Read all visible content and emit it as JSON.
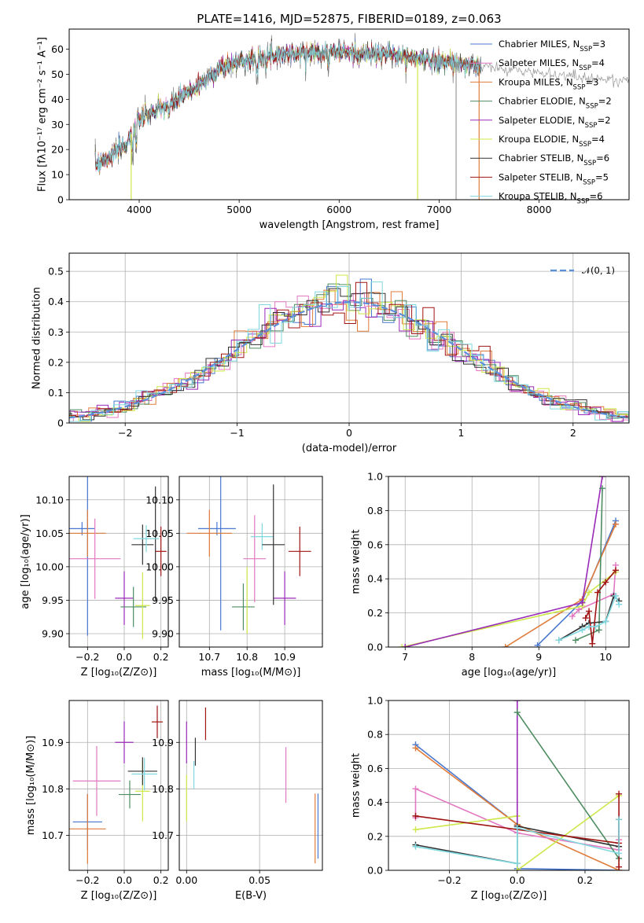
{
  "chart_data": [
    {
      "id": "spectrum",
      "type": "line",
      "title": "PLATE=1416, MJD=52875, FIBERID=0189, z=0.063",
      "xlabel": "wavelength [Angstrom, rest frame]",
      "ylabel": "Flux [fλ10⁻¹⁷ erg cm⁻² s⁻¹ A⁻¹]",
      "xlim": [
        3300,
        8900
      ],
      "ylim": [
        0,
        68
      ],
      "x_ticks": [
        4000,
        5000,
        6000,
        7000,
        8000
      ],
      "y_ticks": [
        0,
        10,
        20,
        30,
        40,
        50,
        60
      ],
      "grid": false,
      "legend_position": "top-right",
      "continuum_trend": {
        "x": [
          3550,
          3700,
          3850,
          4000,
          4200,
          4400,
          4600,
          4800,
          5000,
          5200,
          5400,
          5600,
          5800,
          6000,
          6200,
          6500,
          6800,
          7100,
          7400
        ],
        "y": [
          14,
          17,
          21,
          32,
          36,
          40,
          46,
          52,
          55,
          57,
          58,
          58,
          59,
          59,
          58,
          58,
          56,
          55,
          53
        ]
      },
      "series": [
        {
          "name": "Chabrier MILES, N_SSP=3",
          "color": "#4878d0"
        },
        {
          "name": "Salpeter MILES, N_SSP=4",
          "color": "#e377c2"
        },
        {
          "name": "Kroupa MILES, N_SSP=3",
          "color": "#e07b39"
        },
        {
          "name": "Chabrier ELODIE, N_SSP=2",
          "color": "#4e8c62"
        },
        {
          "name": "Salpeter ELODIE, N_SSP=2",
          "color": "#9a2ab8"
        },
        {
          "name": "Kroupa ELODIE, N_SSP=4",
          "color": "#cde84a"
        },
        {
          "name": "Chabrier STELIB, N_SSP=6",
          "color": "#333333"
        },
        {
          "name": "Salpeter STELIB, N_SSP=5",
          "color": "#a11414"
        },
        {
          "name": "Kroupa STELIB, N_SSP=6",
          "color": "#7fd8e0"
        }
      ]
    },
    {
      "id": "residuals",
      "type": "histogram",
      "xlabel": "(data-model)/error",
      "ylabel": "Normed distribution",
      "xlim": [
        -2.5,
        2.5
      ],
      "ylim": [
        0,
        0.56
      ],
      "x_ticks": [
        -2,
        -1,
        0,
        1,
        2
      ],
      "y_ticks": [
        0.0,
        0.1,
        0.2,
        0.3,
        0.4,
        0.5
      ],
      "grid": true,
      "legend_position": "top-right",
      "reference_curve": {
        "name": "𝒩(0, 1)",
        "mu": 0,
        "sigma": 1,
        "color": "#5b8fd9"
      }
    },
    {
      "id": "age-vs-Z",
      "type": "errorbar",
      "xlabel": "Z [log₁₀(Z/Z⊙)]",
      "ylabel": "age  [log₁₀(age/yr)]",
      "xlim": [
        -0.3,
        0.24
      ],
      "ylim": [
        9.88,
        10.135
      ],
      "x_ticks": [
        -0.2,
        0.0,
        0.2
      ],
      "y_ticks": [
        9.9,
        9.95,
        10.0,
        10.05,
        10.1
      ],
      "x_tick_labels": [
        "−0.2",
        "0.0",
        "0.2"
      ],
      "y_tick_labels": [
        "9.90",
        "9.95",
        "10.00",
        "10.05",
        "10.10"
      ],
      "grid": true,
      "points": [
        {
          "x": -0.23,
          "y": 10.057,
          "xerr": 0.07,
          "yerr": 0.01,
          "color": "#4878d0"
        },
        {
          "x": -0.2,
          "y": 10.057,
          "xerr": 0.0,
          "yerr": 0.16,
          "color": "#4878d0"
        },
        {
          "x": -0.2,
          "y": 10.05,
          "xerr": 0.1,
          "yerr": 0.035,
          "color": "#e07b39"
        },
        {
          "x": -0.16,
          "y": 10.012,
          "xerr": 0.14,
          "yerr": 0.06,
          "color": "#e377c2"
        },
        {
          "x": 0.0,
          "y": 9.953,
          "xerr": 0.05,
          "yerr": 0.04,
          "color": "#9a2ab8"
        },
        {
          "x": 0.05,
          "y": 9.94,
          "xerr": 0.07,
          "yerr": 0.03,
          "color": "#4e8c62"
        },
        {
          "x": 0.1,
          "y": 9.942,
          "xerr": 0.04,
          "yerr": 0.05,
          "color": "#cde84a"
        },
        {
          "x": 0.1,
          "y": 10.033,
          "xerr": 0.06,
          "yerr": 0.03,
          "color": "#333333"
        },
        {
          "x": 0.17,
          "y": 10.035,
          "xerr": 0.0,
          "yerr": 0.085,
          "color": "#333333"
        },
        {
          "x": 0.12,
          "y": 10.042,
          "xerr": 0.07,
          "yerr": 0.02,
          "color": "#7fd8e0"
        },
        {
          "x": 0.2,
          "y": 10.023,
          "xerr": 0.03,
          "yerr": 0.037,
          "color": "#a11414"
        }
      ]
    },
    {
      "id": "age-vs-mass",
      "type": "errorbar",
      "xlabel": "mass [log₁₀(M/M⊙)]",
      "ylabel": "",
      "xlim": [
        10.62,
        11.0
      ],
      "ylim": [
        9.88,
        10.135
      ],
      "x_ticks": [
        10.7,
        10.8,
        10.9
      ],
      "y_ticks": [
        9.9,
        9.95,
        10.0,
        10.05,
        10.1
      ],
      "x_tick_labels": [
        "10.7",
        "10.8",
        "10.9"
      ],
      "y_tick_labels": [
        "9.90",
        "9.95",
        "10.00",
        "10.05",
        "10.10"
      ],
      "grid": true,
      "points": [
        {
          "x": 10.72,
          "y": 10.057,
          "xerr": 0.05,
          "yerr": 0.01,
          "color": "#4878d0"
        },
        {
          "x": 10.73,
          "y": 10.06,
          "xerr": 0.0,
          "yerr": 0.155,
          "color": "#4878d0"
        },
        {
          "x": 10.7,
          "y": 10.05,
          "xerr": 0.06,
          "yerr": 0.035,
          "color": "#e07b39"
        },
        {
          "x": 10.82,
          "y": 10.012,
          "xerr": 0.03,
          "yerr": 0.065,
          "color": "#e377c2"
        },
        {
          "x": 10.79,
          "y": 9.94,
          "xerr": 0.03,
          "yerr": 0.035,
          "color": "#4e8c62"
        },
        {
          "x": 10.8,
          "y": 9.95,
          "xerr": 0.0,
          "yerr": 0.05,
          "color": "#cde84a"
        },
        {
          "x": 10.9,
          "y": 9.953,
          "xerr": 0.03,
          "yerr": 0.04,
          "color": "#9a2ab8"
        },
        {
          "x": 10.84,
          "y": 10.045,
          "xerr": 0.03,
          "yerr": 0.02,
          "color": "#7fd8e0"
        },
        {
          "x": 10.87,
          "y": 10.033,
          "xerr": 0.03,
          "yerr": 0.09,
          "color": "#333333"
        },
        {
          "x": 10.94,
          "y": 10.023,
          "xerr": 0.03,
          "yerr": 0.037,
          "color": "#a11414"
        }
      ]
    },
    {
      "id": "weight-vs-age",
      "type": "line",
      "xlabel": "age  [log₁₀(age/yr)]",
      "ylabel": "mass weight",
      "xlim": [
        6.75,
        10.35
      ],
      "ylim": [
        0,
        1
      ],
      "x_ticks": [
        7,
        8,
        9,
        10
      ],
      "y_ticks": [
        0.0,
        0.2,
        0.4,
        0.6,
        0.8,
        1.0
      ],
      "x_tick_labels": [
        "7",
        "8",
        "9",
        "10"
      ],
      "y_tick_labels": [
        "0.0",
        "0.2",
        "0.4",
        "0.6",
        "0.8",
        "1.0"
      ],
      "grid": true,
      "series": [
        {
          "color": "#4878d0",
          "x": [
            8.98,
            9.65,
            10.15
          ],
          "y": [
            0.01,
            0.27,
            0.74
          ]
        },
        {
          "color": "#e07b39",
          "x": [
            8.5,
            9.65,
            10.15
          ],
          "y": [
            0.0,
            0.28,
            0.72
          ]
        },
        {
          "color": "#e377c2",
          "x": [
            9.5,
            9.6,
            10.12,
            10.15
          ],
          "y": [
            0.18,
            0.22,
            0.31,
            0.48
          ]
        },
        {
          "color": "#cde84a",
          "x": [
            6.95,
            9.65,
            9.75,
            10.15
          ],
          "y": [
            0.0,
            0.24,
            0.32,
            0.44
          ]
        },
        {
          "color": "#9a2ab8",
          "x": [
            7.0,
            9.65,
            9.95
          ],
          "y": [
            0.0,
            0.26,
            1.0
          ]
        },
        {
          "color": "#4e8c62",
          "x": [
            9.55,
            9.9,
            9.95
          ],
          "y": [
            0.04,
            0.1,
            0.93
          ]
        },
        {
          "color": "#333333",
          "x": [
            9.3,
            9.65,
            9.75,
            10.0,
            10.12,
            10.2
          ],
          "y": [
            0.04,
            0.12,
            0.14,
            0.15,
            0.3,
            0.27
          ]
        },
        {
          "color": "#a11414",
          "x": [
            9.7,
            9.75,
            9.8,
            9.88,
            10.0,
            10.15
          ],
          "y": [
            0.17,
            0.21,
            0.02,
            0.32,
            0.38,
            0.45
          ]
        },
        {
          "color": "#7fd8e0",
          "x": [
            9.3,
            9.65,
            9.75,
            9.85,
            10.0,
            10.15,
            10.2
          ],
          "y": [
            0.04,
            0.1,
            0.12,
            0.12,
            0.15,
            0.3,
            0.25
          ]
        }
      ]
    },
    {
      "id": "mass-vs-Z",
      "type": "errorbar",
      "xlabel": "Z [log₁₀(Z/Z⊙)]",
      "ylabel": "mass [log₁₀(M/M⊙)]",
      "xlim": [
        -0.3,
        0.24
      ],
      "ylim": [
        10.625,
        10.99
      ],
      "x_ticks": [
        -0.2,
        0.0,
        0.2
      ],
      "y_ticks": [
        10.7,
        10.8,
        10.9
      ],
      "x_tick_labels": [
        "−0.2",
        "0.0",
        "0.2"
      ],
      "y_tick_labels": [
        "10.7",
        "10.8",
        "10.9"
      ],
      "grid": true,
      "points": [
        {
          "x": -0.2,
          "y": 10.729,
          "xerr": 0.08,
          "yerr": 0.06,
          "color": "#4878d0"
        },
        {
          "x": -0.2,
          "y": 10.714,
          "xerr": 0.1,
          "yerr": 0.075,
          "color": "#e07b39"
        },
        {
          "x": -0.15,
          "y": 10.817,
          "xerr": 0.13,
          "yerr": 0.075,
          "color": "#e377c2"
        },
        {
          "x": 0.0,
          "y": 10.9,
          "xerr": 0.05,
          "yerr": 0.045,
          "color": "#9a2ab8"
        },
        {
          "x": 0.03,
          "y": 10.788,
          "xerr": 0.06,
          "yerr": 0.03,
          "color": "#4e8c62"
        },
        {
          "x": 0.1,
          "y": 10.795,
          "xerr": 0.04,
          "yerr": 0.065,
          "color": "#cde84a"
        },
        {
          "x": 0.1,
          "y": 10.838,
          "xerr": 0.08,
          "yerr": 0.03,
          "color": "#333333"
        },
        {
          "x": 0.11,
          "y": 10.832,
          "xerr": 0.07,
          "yerr": 0.035,
          "color": "#7fd8e0"
        },
        {
          "x": 0.18,
          "y": 10.944,
          "xerr": 0.03,
          "yerr": 0.035,
          "color": "#a11414"
        }
      ]
    },
    {
      "id": "mass-vs-EBV",
      "type": "errorbar",
      "xlabel": "E(B-V)",
      "ylabel": "",
      "xlim": [
        -0.005,
        0.093
      ],
      "ylim": [
        10.625,
        10.99
      ],
      "x_ticks": [
        0.0,
        0.05
      ],
      "y_ticks": [
        10.7,
        10.8,
        10.9
      ],
      "x_tick_labels": [
        "0.00",
        "0.05"
      ],
      "y_tick_labels": [
        "10.7",
        "10.8",
        "10.9"
      ],
      "grid": true,
      "points": [
        {
          "x": 0.0,
          "y": 10.9,
          "xerr": 0.0,
          "yerr": 0.045,
          "color": "#9a2ab8"
        },
        {
          "x": 0.0,
          "y": 10.78,
          "xerr": 0.0,
          "yerr": 0.05,
          "color": "#cde84a"
        },
        {
          "x": 0.005,
          "y": 10.83,
          "xerr": 0.0,
          "yerr": 0.03,
          "color": "#7fd8e0"
        },
        {
          "x": 0.006,
          "y": 10.88,
          "xerr": 0.0,
          "yerr": 0.03,
          "color": "#333333"
        },
        {
          "x": 0.013,
          "y": 10.94,
          "xerr": 0.0,
          "yerr": 0.035,
          "color": "#a11414"
        },
        {
          "x": 0.068,
          "y": 10.83,
          "xerr": 0.0,
          "yerr": 0.06,
          "color": "#e377c2"
        },
        {
          "x": 0.088,
          "y": 10.715,
          "xerr": 0.0,
          "yerr": 0.075,
          "color": "#e07b39"
        },
        {
          "x": 0.09,
          "y": 10.72,
          "xerr": 0.0,
          "yerr": 0.07,
          "color": "#4878d0"
        }
      ]
    },
    {
      "id": "weight-vs-Z",
      "type": "line",
      "xlabel": "Z [log₁₀(Z/Z⊙)]",
      "ylabel": "mass weight",
      "xlim": [
        -0.38,
        0.33
      ],
      "ylim": [
        0,
        1
      ],
      "x_ticks": [
        -0.2,
        0.0,
        0.2
      ],
      "y_ticks": [
        0.0,
        0.2,
        0.4,
        0.6,
        0.8,
        1.0
      ],
      "x_tick_labels": [
        "−0.2",
        "0.0",
        "0.2"
      ],
      "y_tick_labels": [
        "0.0",
        "0.2",
        "0.4",
        "0.6",
        "0.8",
        "1.0"
      ],
      "grid": true,
      "series": [
        {
          "color": "#4878d0",
          "x": [
            -0.3,
            0.0,
            0.0,
            0.3
          ],
          "y": [
            0.74,
            0.27,
            0.01,
            0.0
          ]
        },
        {
          "color": "#e07b39",
          "x": [
            -0.3,
            0.0,
            0.3
          ],
          "y": [
            0.72,
            0.27,
            0.0
          ]
        },
        {
          "color": "#e377c2",
          "x": [
            -0.3,
            -0.3,
            0.0,
            0.3,
            0.3
          ],
          "y": [
            0.31,
            0.48,
            0.22,
            0.12,
            0.18
          ]
        },
        {
          "color": "#cde84a",
          "x": [
            -0.3,
            0.0,
            0.0,
            0.3
          ],
          "y": [
            0.24,
            0.32,
            0.0,
            0.44
          ]
        },
        {
          "color": "#9a2ab8",
          "x": [
            0.0,
            0.0
          ],
          "y": [
            0.26,
            1.0
          ]
        },
        {
          "color": "#4e8c62",
          "x": [
            0.0,
            0.3
          ],
          "y": [
            0.93,
            0.07
          ]
        },
        {
          "color": "#333333",
          "x": [
            -0.3,
            0.0,
            0.0,
            0.3,
            0.3
          ],
          "y": [
            0.15,
            0.04,
            0.26,
            0.14,
            0.3
          ]
        },
        {
          "color": "#a11414",
          "x": [
            -0.3,
            0.3,
            0.3,
            0.3
          ],
          "y": [
            0.32,
            0.16,
            0.45,
            0.02
          ]
        },
        {
          "color": "#7fd8e0",
          "x": [
            -0.3,
            0.0,
            0.0,
            0.3,
            0.3
          ],
          "y": [
            0.14,
            0.04,
            0.25,
            0.1,
            0.3
          ]
        }
      ]
    }
  ]
}
